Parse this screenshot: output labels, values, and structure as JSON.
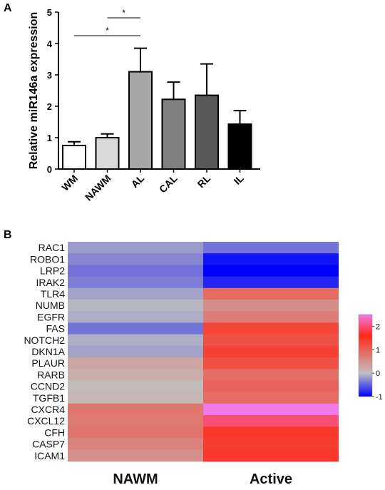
{
  "panels": {
    "a_label": "A",
    "b_label": "B"
  },
  "chart_data": [
    {
      "type": "bar",
      "panel": "A",
      "categories": [
        "WM",
        "NAWM",
        "AL",
        "CAL",
        "RL",
        "IL"
      ],
      "values": [
        0.75,
        1.0,
        3.1,
        2.22,
        2.35,
        1.43
      ],
      "errors": [
        0.12,
        0.12,
        0.75,
        0.55,
        1.0,
        0.43
      ],
      "bar_colors": [
        "#ffffff",
        "#d9d9d9",
        "#a6a6a6",
        "#808080",
        "#595959",
        "#000000"
      ],
      "ylabel": "Relative miR146a expression",
      "ylim": [
        0,
        5
      ],
      "yticks": [
        "0",
        "1",
        "2",
        "3",
        "4",
        "5"
      ],
      "significance": [
        {
          "from": "NAWM",
          "to": "AL",
          "label": "*"
        },
        {
          "from": "WM",
          "to": "AL",
          "label": "*"
        }
      ]
    },
    {
      "type": "heatmap",
      "panel": "B",
      "columns": [
        "NAWM",
        "Active"
      ],
      "rows": [
        "RAC1",
        "ROBO1",
        "LRP2",
        "IRAK2",
        "TLR4",
        "NUMB",
        "EGFR",
        "FAS",
        "NOTCH2",
        "DKN1A",
        "PLAUR",
        "RARB",
        "CCND2",
        "TGFB1",
        "CXCR4",
        "CXCL12",
        "CFH",
        "CASP7",
        "ICAM1"
      ],
      "values": [
        [
          -0.2,
          -0.4
        ],
        [
          -0.3,
          -0.9
        ],
        [
          -0.4,
          -1.0
        ],
        [
          -0.35,
          -0.8
        ],
        [
          -0.15,
          0.9
        ],
        [
          -0.05,
          0.55
        ],
        [
          -0.1,
          0.7
        ],
        [
          -0.4,
          1.3
        ],
        [
          -0.1,
          1.2
        ],
        [
          -0.15,
          1.35
        ],
        [
          0.3,
          1.2
        ],
        [
          0.2,
          0.9
        ],
        [
          0.05,
          1.0
        ],
        [
          0.1,
          0.9
        ],
        [
          0.8,
          2.6
        ],
        [
          0.75,
          2.0
        ],
        [
          0.8,
          1.45
        ],
        [
          0.65,
          1.4
        ],
        [
          0.5,
          1.45
        ]
      ],
      "colorbar": {
        "min": -1,
        "max": 2.5,
        "ticks": [
          "2",
          "1",
          "0",
          "-1"
        ]
      },
      "colors": {
        "neg": "#0000ff",
        "mid": "#c0c0c0",
        "pos": "#ff2a1a",
        "high": "#f07ae8"
      }
    }
  ]
}
